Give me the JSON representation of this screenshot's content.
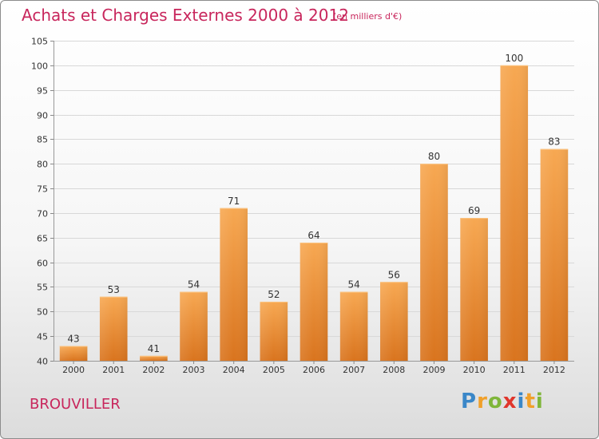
{
  "title": "Achats et Charges Externes 2000 à 2012",
  "subtitle": "(en milliers d'€)",
  "commune": "BROUVILLER",
  "logo": {
    "letters": [
      {
        "char": "P",
        "color": "#3a87c8"
      },
      {
        "char": "r",
        "color": "#f0a02a"
      },
      {
        "char": "o",
        "color": "#7fb63a"
      },
      {
        "char": "x",
        "color": "#e0362c"
      },
      {
        "char": "i",
        "color": "#3a87c8"
      },
      {
        "char": "t",
        "color": "#f0a02a"
      },
      {
        "char": "i",
        "color": "#7fb63a"
      }
    ]
  },
  "chart_data": {
    "type": "bar",
    "categories": [
      "2000",
      "2001",
      "2002",
      "2003",
      "2004",
      "2005",
      "2006",
      "2007",
      "2008",
      "2009",
      "2010",
      "2011",
      "2012"
    ],
    "values": [
      43,
      53,
      41,
      54,
      71,
      52,
      64,
      54,
      56,
      80,
      69,
      100,
      83
    ],
    "ylim": [
      40,
      105
    ],
    "yticks": [
      40,
      45,
      50,
      55,
      60,
      65,
      70,
      75,
      80,
      85,
      90,
      95,
      100,
      105
    ],
    "grid": true,
    "bar_color_light": "#f7a852",
    "bar_color_dark": "#d9741e"
  }
}
